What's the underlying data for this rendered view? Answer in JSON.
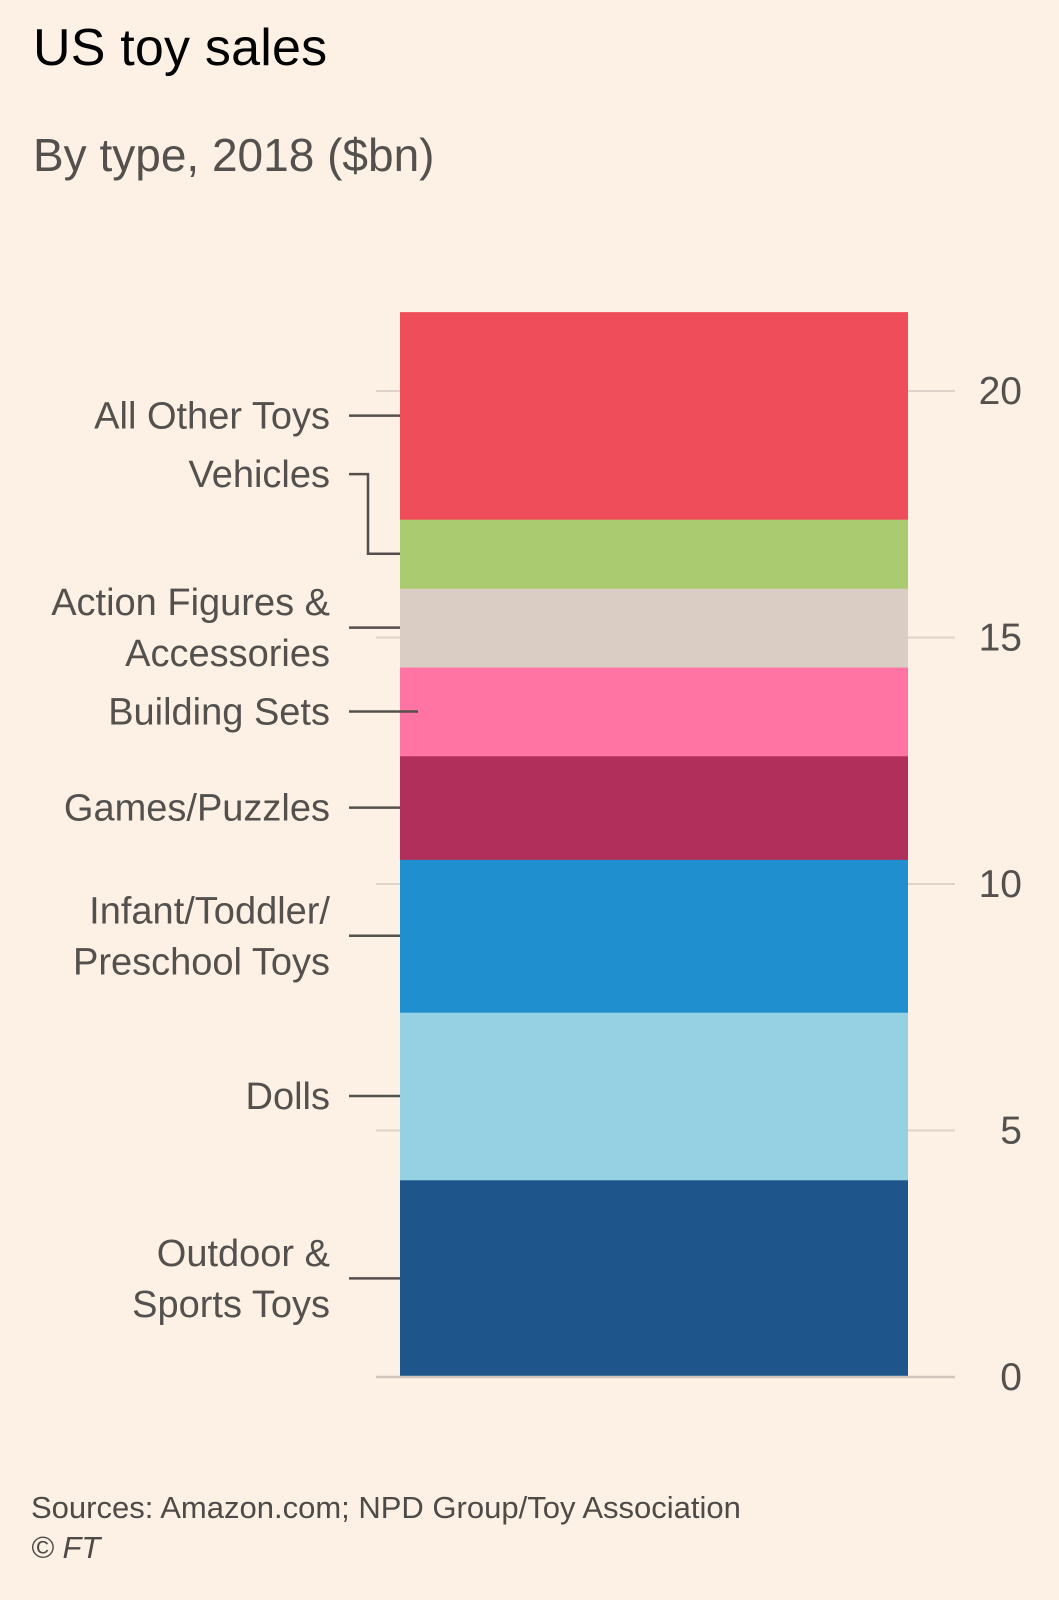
{
  "title": "US toy sales",
  "subtitle": "By type, 2018 ($bn)",
  "chart_data": {
    "type": "stacked-bar",
    "title": "US toy sales",
    "subtitle": "By type, 2018 ($bn)",
    "units": "$bn",
    "ylim": [
      0,
      21.6
    ],
    "yticks": [
      0,
      5,
      10,
      15,
      20
    ],
    "ytick_labels": [
      "0",
      "5",
      "10",
      "15",
      "20"
    ],
    "series": [
      {
        "name": "Outdoor & Sports Toys",
        "label_lines": [
          "Outdoor &",
          "Sports Toys"
        ],
        "value": 4.0,
        "color": "#1E558B"
      },
      {
        "name": "Dolls",
        "label_lines": [
          "Dolls"
        ],
        "value": 3.4,
        "color": "#96D1E3"
      },
      {
        "name": "Infant/Toddler/Preschool Toys",
        "label_lines": [
          "Infant/Toddler/",
          "Preschool Toys"
        ],
        "value": 3.1,
        "color": "#1F8FCF"
      },
      {
        "name": "Games/Puzzles",
        "label_lines": [
          "Games/Puzzles"
        ],
        "value": 2.1,
        "color": "#B02F5B"
      },
      {
        "name": "Building Sets",
        "label_lines": [
          "Building Sets"
        ],
        "value": 1.8,
        "color": "#FF74A2"
      },
      {
        "name": "Action Figures & Accessories",
        "label_lines": [
          "Action Figures &",
          "Accessories"
        ],
        "value": 1.6,
        "color": "#DACDC3"
      },
      {
        "name": "Vehicles",
        "label_lines": [
          "Vehicles"
        ],
        "value": 1.4,
        "color": "#ABCB71"
      },
      {
        "name": "All Other Toys",
        "label_lines": [
          "All Other Toys"
        ],
        "value": 4.2,
        "color": "#F04D5A"
      }
    ]
  },
  "footer": {
    "sources": "Sources: Amazon.com; NPD Group/Toy Association",
    "copyright": "© FT"
  }
}
